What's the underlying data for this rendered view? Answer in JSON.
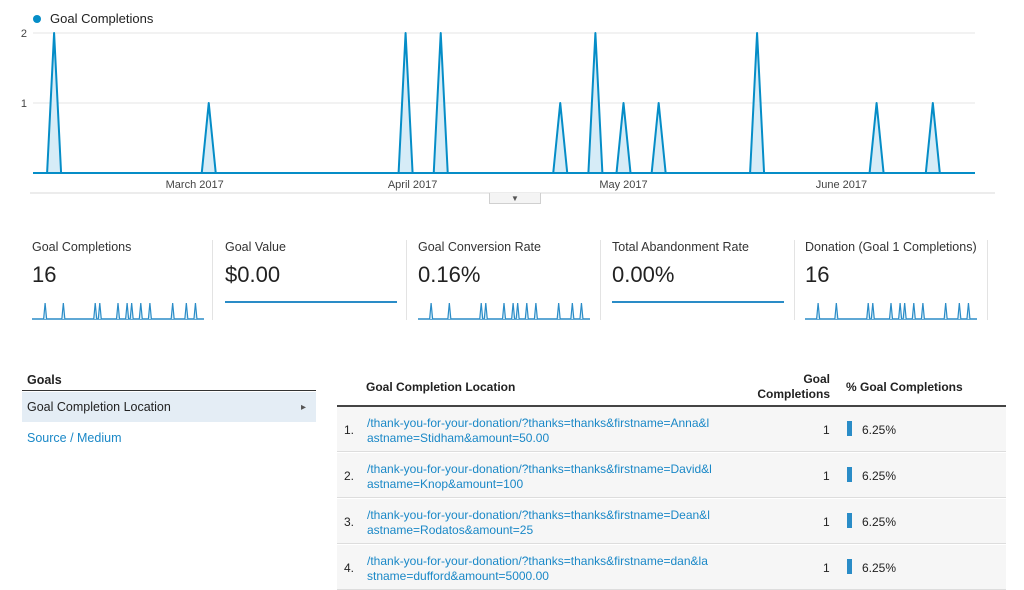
{
  "legend": {
    "label": "Goal Completions",
    "color": "#058dc7"
  },
  "chart_data": {
    "type": "area",
    "series": [
      {
        "name": "Goal Completions",
        "points": [
          {
            "x": "2017-02-09",
            "y": 2
          },
          {
            "x": "2017-03-03",
            "y": 1
          },
          {
            "x": "2017-03-31",
            "y": 2
          },
          {
            "x": "2017-04-05",
            "y": 2
          },
          {
            "x": "2017-04-22",
            "y": 1
          },
          {
            "x": "2017-04-27",
            "y": 2
          },
          {
            "x": "2017-05-01",
            "y": 1
          },
          {
            "x": "2017-05-06",
            "y": 1
          },
          {
            "x": "2017-05-20",
            "y": 2
          },
          {
            "x": "2017-06-06",
            "y": 1
          },
          {
            "x": "2017-06-14",
            "y": 1
          }
        ]
      }
    ],
    "x_range": [
      "2017-02-06",
      "2017-06-20"
    ],
    "x_ticks": [
      {
        "date": "2017-03-01",
        "label": "March 2017"
      },
      {
        "date": "2017-04-01",
        "label": "April 2017"
      },
      {
        "date": "2017-05-01",
        "label": "May 2017"
      },
      {
        "date": "2017-06-01",
        "label": "June 2017"
      }
    ],
    "y_ticks": [
      1,
      2
    ],
    "ylim": [
      0,
      2
    ],
    "grid": true
  },
  "handle": {
    "icon": "caret-down-icon",
    "glyph": "▼"
  },
  "metrics": [
    {
      "label": "Goal Completions",
      "value": "16",
      "spark": [
        0,
        0,
        1,
        0,
        0,
        0,
        1,
        0,
        0,
        0,
        0,
        0,
        0,
        1,
        1,
        0,
        0,
        0,
        1,
        0,
        1,
        1,
        0,
        1,
        0,
        1,
        0,
        0,
        0,
        0,
        1,
        0,
        0,
        1,
        0,
        1,
        0
      ],
      "flat": false
    },
    {
      "label": "Goal Value",
      "value": "$0.00",
      "flat": true
    },
    {
      "label": "Goal Conversion Rate",
      "value": "0.16%",
      "spark": [
        0,
        0,
        1,
        0,
        0,
        0,
        1,
        0,
        0,
        0,
        0,
        0,
        0,
        1,
        1,
        0,
        0,
        0,
        1,
        0,
        1,
        1,
        0,
        1,
        0,
        1,
        0,
        0,
        0,
        0,
        1,
        0,
        0,
        1,
        0,
        1,
        0
      ],
      "flat": false
    },
    {
      "label": "Total Abandonment Rate",
      "value": "0.00%",
      "flat": true
    },
    {
      "label": "Donation (Goal 1 Completions)",
      "value": "16",
      "spark": [
        0,
        0,
        1,
        0,
        0,
        0,
        1,
        0,
        0,
        0,
        0,
        0,
        0,
        1,
        1,
        0,
        0,
        0,
        1,
        0,
        1,
        1,
        0,
        1,
        0,
        1,
        0,
        0,
        0,
        0,
        1,
        0,
        0,
        1,
        0,
        1,
        0
      ],
      "flat": false
    }
  ],
  "goals_menu": {
    "title": "Goals",
    "selected": "Goal Completion Location",
    "selected_arrow": "▸",
    "link": "Source / Medium"
  },
  "table": {
    "headers": {
      "location": "Goal Completion Location",
      "completions_line1": "Goal",
      "completions_line2": "Completions",
      "percent": "% Goal Completions"
    },
    "rows": [
      {
        "num": "1.",
        "location": "/thank-you-for-your-donation/?thanks=thanks&firstname=Anna&lastname=Stidham&amount=50.00",
        "completions": "1",
        "percent": "6.25%"
      },
      {
        "num": "2.",
        "location": "/thank-you-for-your-donation/?thanks=thanks&firstname=David&lastname=Knop&amount=100",
        "completions": "1",
        "percent": "6.25%"
      },
      {
        "num": "3.",
        "location": "/thank-you-for-your-donation/?thanks=thanks&firstname=Dean&lastname=Rodatos&amount=25",
        "completions": "1",
        "percent": "6.25%"
      },
      {
        "num": "4.",
        "location": "/thank-you-for-your-donation/?thanks=thanks&firstname=dan&lastname=dufford&amount=5000.00",
        "completions": "1",
        "percent": "6.25%"
      }
    ]
  }
}
